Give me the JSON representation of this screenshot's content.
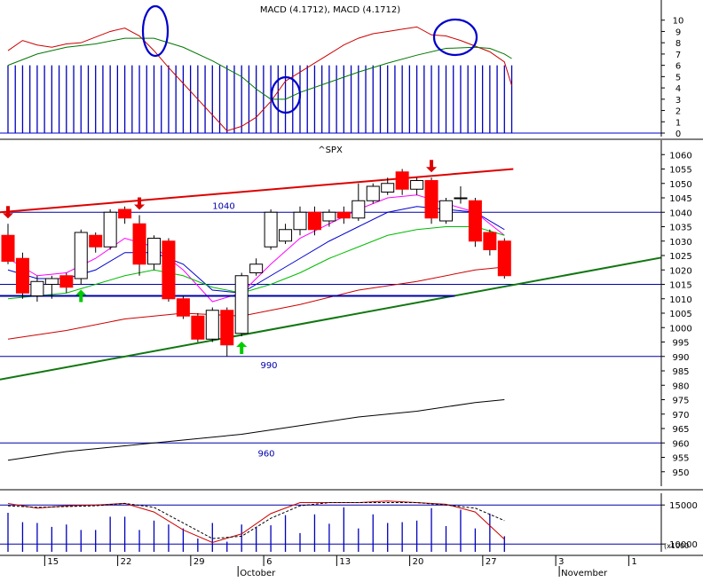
{
  "chart_data": [
    {
      "type": "line",
      "panel": "macd",
      "title": "MACD (4.1712), MACD (4.1712)",
      "ylim": [
        0,
        11
      ],
      "yticks": [
        0,
        1,
        2,
        3,
        4,
        5,
        6,
        7,
        8,
        9,
        10
      ],
      "histogram": [
        6,
        6,
        6,
        6,
        6,
        6,
        6,
        6,
        6,
        6,
        6,
        6,
        6,
        6,
        6,
        6,
        6,
        6,
        6,
        6,
        6,
        6,
        6,
        6,
        6,
        6,
        6,
        6,
        6,
        6,
        6,
        6,
        6,
        6,
        6,
        6,
        6,
        6,
        6,
        6,
        6,
        6,
        6,
        6,
        6,
        6,
        6,
        6,
        6,
        6,
        6,
        6,
        6,
        6,
        6,
        6,
        6,
        6,
        6,
        6,
        6,
        6,
        6,
        6,
        6,
        6,
        6,
        6,
        6,
        6,
        6
      ],
      "series": [
        {
          "name": "",
          "color": "#cc0000",
          "x": [
            0,
            2,
            4,
            6,
            8,
            10,
            12,
            14,
            16,
            18,
            20,
            22,
            24,
            26,
            28,
            30,
            32,
            34,
            36,
            38,
            40,
            42,
            44,
            46,
            48,
            50,
            52,
            54,
            56,
            58,
            60,
            62,
            64,
            66,
            68,
            69
          ],
          "values": [
            7.3,
            8.2,
            7.8,
            7.6,
            7.9,
            8.0,
            8.5,
            9.0,
            9.3,
            8.6,
            7.3,
            5.8,
            4.4,
            3.0,
            1.6,
            0.2,
            0.6,
            1.4,
            2.8,
            4.6,
            5.4,
            6.2,
            7.0,
            7.8,
            8.4,
            8.8,
            9.0,
            9.2,
            9.4,
            8.7,
            8.6,
            8.2,
            7.7,
            7.2,
            6.3,
            4.2
          ]
        },
        {
          "name": "",
          "color": "#007700",
          "x": [
            0,
            4,
            8,
            12,
            16,
            20,
            24,
            28,
            32,
            34,
            36,
            38,
            40,
            44,
            48,
            52,
            56,
            60,
            64,
            66,
            68,
            69
          ],
          "values": [
            6.0,
            7.0,
            7.6,
            7.9,
            8.4,
            8.4,
            7.6,
            6.4,
            5.0,
            3.9,
            3.0,
            3.0,
            3.6,
            4.5,
            5.4,
            6.2,
            6.9,
            7.5,
            7.6,
            7.5,
            7.0,
            6.6
          ]
        }
      ],
      "annotations": [
        "circle",
        "circle",
        "circle"
      ]
    },
    {
      "type": "candlestick",
      "panel": "price",
      "title": "^SPX",
      "ylim": [
        945,
        1065
      ],
      "yticks": [
        950,
        955,
        960,
        965,
        970,
        975,
        980,
        985,
        990,
        995,
        1000,
        1005,
        1010,
        1015,
        1020,
        1025,
        1030,
        1035,
        1040,
        1045,
        1050,
        1055,
        1060
      ],
      "candles": [
        {
          "d": 0,
          "o": 1032,
          "c": 1023,
          "h": 1036,
          "l": 1022
        },
        {
          "d": 1,
          "o": 1024,
          "c": 1012,
          "h": 1026,
          "l": 1010
        },
        {
          "d": 2,
          "o": 1011,
          "c": 1016,
          "h": 1018,
          "l": 1009
        },
        {
          "d": 3,
          "o": 1015,
          "c": 1017,
          "h": 1018,
          "l": 1010
        },
        {
          "d": 4,
          "o": 1018,
          "c": 1014,
          "h": 1019,
          "l": 1012
        },
        {
          "d": 5,
          "o": 1017,
          "c": 1033,
          "h": 1034,
          "l": 1015
        },
        {
          "d": 6,
          "o": 1032,
          "c": 1028,
          "h": 1033,
          "l": 1026
        },
        {
          "d": 7,
          "o": 1028,
          "c": 1040,
          "h": 1041,
          "l": 1027
        },
        {
          "d": 8,
          "o": 1041,
          "c": 1038,
          "h": 1042,
          "l": 1036
        },
        {
          "d": 9,
          "o": 1036,
          "c": 1022,
          "h": 1039,
          "l": 1018
        },
        {
          "d": 10,
          "o": 1022,
          "c": 1031,
          "h": 1032,
          "l": 1020
        },
        {
          "d": 11,
          "o": 1030,
          "c": 1010,
          "h": 1031,
          "l": 1009
        },
        {
          "d": 12,
          "o": 1010,
          "c": 1004,
          "h": 1011,
          "l": 1003
        },
        {
          "d": 13,
          "o": 1004,
          "c": 996,
          "h": 1005,
          "l": 995
        },
        {
          "d": 14,
          "o": 996,
          "c": 1006,
          "h": 1007,
          "l": 995
        },
        {
          "d": 15,
          "o": 1006,
          "c": 994,
          "h": 1007,
          "l": 990
        },
        {
          "d": 16,
          "o": 998,
          "c": 1018,
          "h": 1019,
          "l": 997
        },
        {
          "d": 17,
          "o": 1019,
          "c": 1022,
          "h": 1024,
          "l": 1018
        },
        {
          "d": 18,
          "o": 1028,
          "c": 1040,
          "h": 1041,
          "l": 1027
        },
        {
          "d": 19,
          "o": 1030,
          "c": 1034,
          "h": 1036,
          "l": 1029
        },
        {
          "d": 20,
          "o": 1034,
          "c": 1040,
          "h": 1042,
          "l": 1032
        },
        {
          "d": 21,
          "o": 1040,
          "c": 1034,
          "h": 1042,
          "l": 1032
        },
        {
          "d": 22,
          "o": 1037,
          "c": 1040,
          "h": 1041,
          "l": 1035
        },
        {
          "d": 23,
          "o": 1040,
          "c": 1038,
          "h": 1042,
          "l": 1036
        },
        {
          "d": 24,
          "o": 1038,
          "c": 1044,
          "h": 1050,
          "l": 1037
        },
        {
          "d": 25,
          "o": 1044,
          "c": 1049,
          "h": 1050,
          "l": 1043
        },
        {
          "d": 26,
          "o": 1047,
          "c": 1050,
          "h": 1052,
          "l": 1046
        },
        {
          "d": 27,
          "o": 1054,
          "c": 1048,
          "h": 1055,
          "l": 1046
        },
        {
          "d": 28,
          "o": 1048,
          "c": 1051,
          "h": 1052,
          "l": 1046
        },
        {
          "d": 29,
          "o": 1051,
          "c": 1038,
          "h": 1052,
          "l": 1036
        },
        {
          "d": 30,
          "o": 1037,
          "c": 1044,
          "h": 1045,
          "l": 1036
        },
        {
          "d": 31,
          "o": 1045,
          "c": 1045,
          "h": 1049,
          "l": 1043
        },
        {
          "d": 32,
          "o": 1044,
          "c": 1030,
          "h": 1045,
          "l": 1028
        },
        {
          "d": 33,
          "o": 1033,
          "c": 1027,
          "h": 1034,
          "l": 1025
        },
        {
          "d": 34,
          "o": 1030,
          "c": 1018,
          "h": 1031,
          "l": 1017
        }
      ],
      "hlines": [
        {
          "value": 1040,
          "label": "1040"
        },
        {
          "value": 1015,
          "label": ""
        },
        {
          "value": 990,
          "label": "990"
        },
        {
          "value": 960,
          "label": "960"
        }
      ],
      "series": [
        {
          "name": "",
          "color": "#ff00ff",
          "x": [
            0,
            2,
            4,
            6,
            8,
            10,
            12,
            14,
            16,
            18,
            20,
            22,
            24,
            26,
            28,
            30,
            32,
            34
          ],
          "values": [
            1024,
            1018,
            1019,
            1024,
            1031,
            1028,
            1020,
            1009,
            1012,
            1022,
            1031,
            1036,
            1041,
            1045,
            1046,
            1043,
            1040,
            1032
          ]
        },
        {
          "name": "",
          "color": "#0000cc",
          "x": [
            0,
            2,
            4,
            6,
            8,
            10,
            12,
            14,
            16,
            18,
            20,
            22,
            24,
            26,
            28,
            30,
            32,
            34
          ],
          "values": [
            1020,
            1017,
            1017,
            1020,
            1026,
            1026,
            1022,
            1013,
            1012,
            1018,
            1024,
            1030,
            1035,
            1040,
            1042,
            1041,
            1040,
            1034
          ]
        },
        {
          "name": "",
          "color": "#00bb00",
          "x": [
            0,
            2,
            4,
            6,
            8,
            10,
            12,
            14,
            16,
            18,
            20,
            22,
            24,
            26,
            28,
            30,
            32,
            34
          ],
          "values": [
            1010,
            1011,
            1012,
            1015,
            1018,
            1020,
            1018,
            1014,
            1012,
            1015,
            1019,
            1024,
            1028,
            1032,
            1034,
            1035,
            1035,
            1032
          ]
        },
        {
          "name": "",
          "color": "#cc0000",
          "x": [
            0,
            4,
            8,
            12,
            16,
            20,
            24,
            28,
            32,
            34
          ],
          "values": [
            996,
            999,
            1003,
            1005,
            1004,
            1008,
            1013,
            1016,
            1020,
            1021
          ]
        },
        {
          "name": "",
          "color": "#000000",
          "x": [
            0,
            4,
            8,
            12,
            16,
            20,
            24,
            28,
            32,
            34
          ],
          "values": [
            954,
            957,
            959,
            961,
            963,
            966,
            969,
            971,
            974,
            975
          ]
        }
      ],
      "trendlines": [
        {
          "color": "#dd0000",
          "from": {
            "d": 0,
            "v": 1040
          },
          "to": {
            "d": 34,
            "v": 1055
          }
        },
        {
          "color": "#117711",
          "from": {
            "d": 0,
            "v": 982
          },
          "to": {
            "d": 46,
            "v": 1026
          }
        },
        {
          "color": "#0000aa",
          "from": {
            "d": 0,
            "v": 1011
          },
          "to": {
            "d": 30,
            "v": 1011
          }
        }
      ],
      "arrows": [
        {
          "d": 0,
          "dir": "down",
          "color": "#dd0000"
        },
        {
          "d": 5,
          "dir": "up",
          "color": "#00cc00"
        },
        {
          "d": 9,
          "dir": "down",
          "color": "#dd0000"
        },
        {
          "d": 16,
          "dir": "up",
          "color": "#00cc00"
        },
        {
          "d": 29,
          "dir": "down",
          "color": "#dd0000"
        }
      ]
    },
    {
      "type": "bar",
      "panel": "volume",
      "ylim": [
        9000,
        16500
      ],
      "yticks": [
        10000,
        15000
      ],
      "ytick_labels": [
        "10000",
        "15000"
      ],
      "unit_label": "(x1000",
      "volume": [
        14000,
        12800,
        12700,
        12200,
        12500,
        11800,
        11800,
        13500,
        13500,
        11800,
        13000,
        12500,
        12000,
        10700,
        12700,
        10300,
        12500,
        12100,
        12400,
        13700,
        11400,
        13800,
        12600,
        14700,
        12000,
        13800,
        12700,
        12800,
        13000,
        14600,
        12300,
        14400,
        12000,
        13900,
        11000
      ],
      "series": [
        {
          "name": "",
          "color": "#cc0000",
          "x": [
            0,
            2,
            4,
            6,
            8,
            10,
            12,
            14,
            16,
            18,
            20,
            22,
            24,
            26,
            28,
            30,
            32,
            34
          ],
          "values": [
            15200,
            14600,
            14900,
            15000,
            15200,
            14100,
            11800,
            10200,
            11300,
            13900,
            15300,
            15300,
            15300,
            15500,
            15300,
            15100,
            14100,
            10600
          ]
        },
        {
          "name": "",
          "color": "#000000",
          "x": [
            0,
            2,
            4,
            6,
            8,
            10,
            12,
            14,
            16,
            18,
            20,
            22,
            24,
            26,
            28,
            30,
            32,
            34
          ],
          "values": [
            14900,
            14700,
            14800,
            14900,
            15200,
            14700,
            12700,
            10700,
            11000,
            13300,
            14900,
            15300,
            15300,
            15300,
            15300,
            15000,
            14600,
            13000
          ]
        }
      ]
    }
  ],
  "x_axis": {
    "ticks": [
      {
        "d": 3,
        "label": "15"
      },
      {
        "d": 8,
        "label": "22"
      },
      {
        "d": 13,
        "label": "29"
      },
      {
        "d": 18,
        "label": "6"
      },
      {
        "d": 23,
        "label": "13"
      },
      {
        "d": 28,
        "label": "20"
      },
      {
        "d": 33,
        "label": "27"
      },
      {
        "d": 38,
        "label": "3"
      },
      {
        "d": 43,
        "label": "1"
      }
    ],
    "months": [
      {
        "d": 16,
        "label": "October"
      },
      {
        "d": 38,
        "label": "November"
      }
    ]
  }
}
